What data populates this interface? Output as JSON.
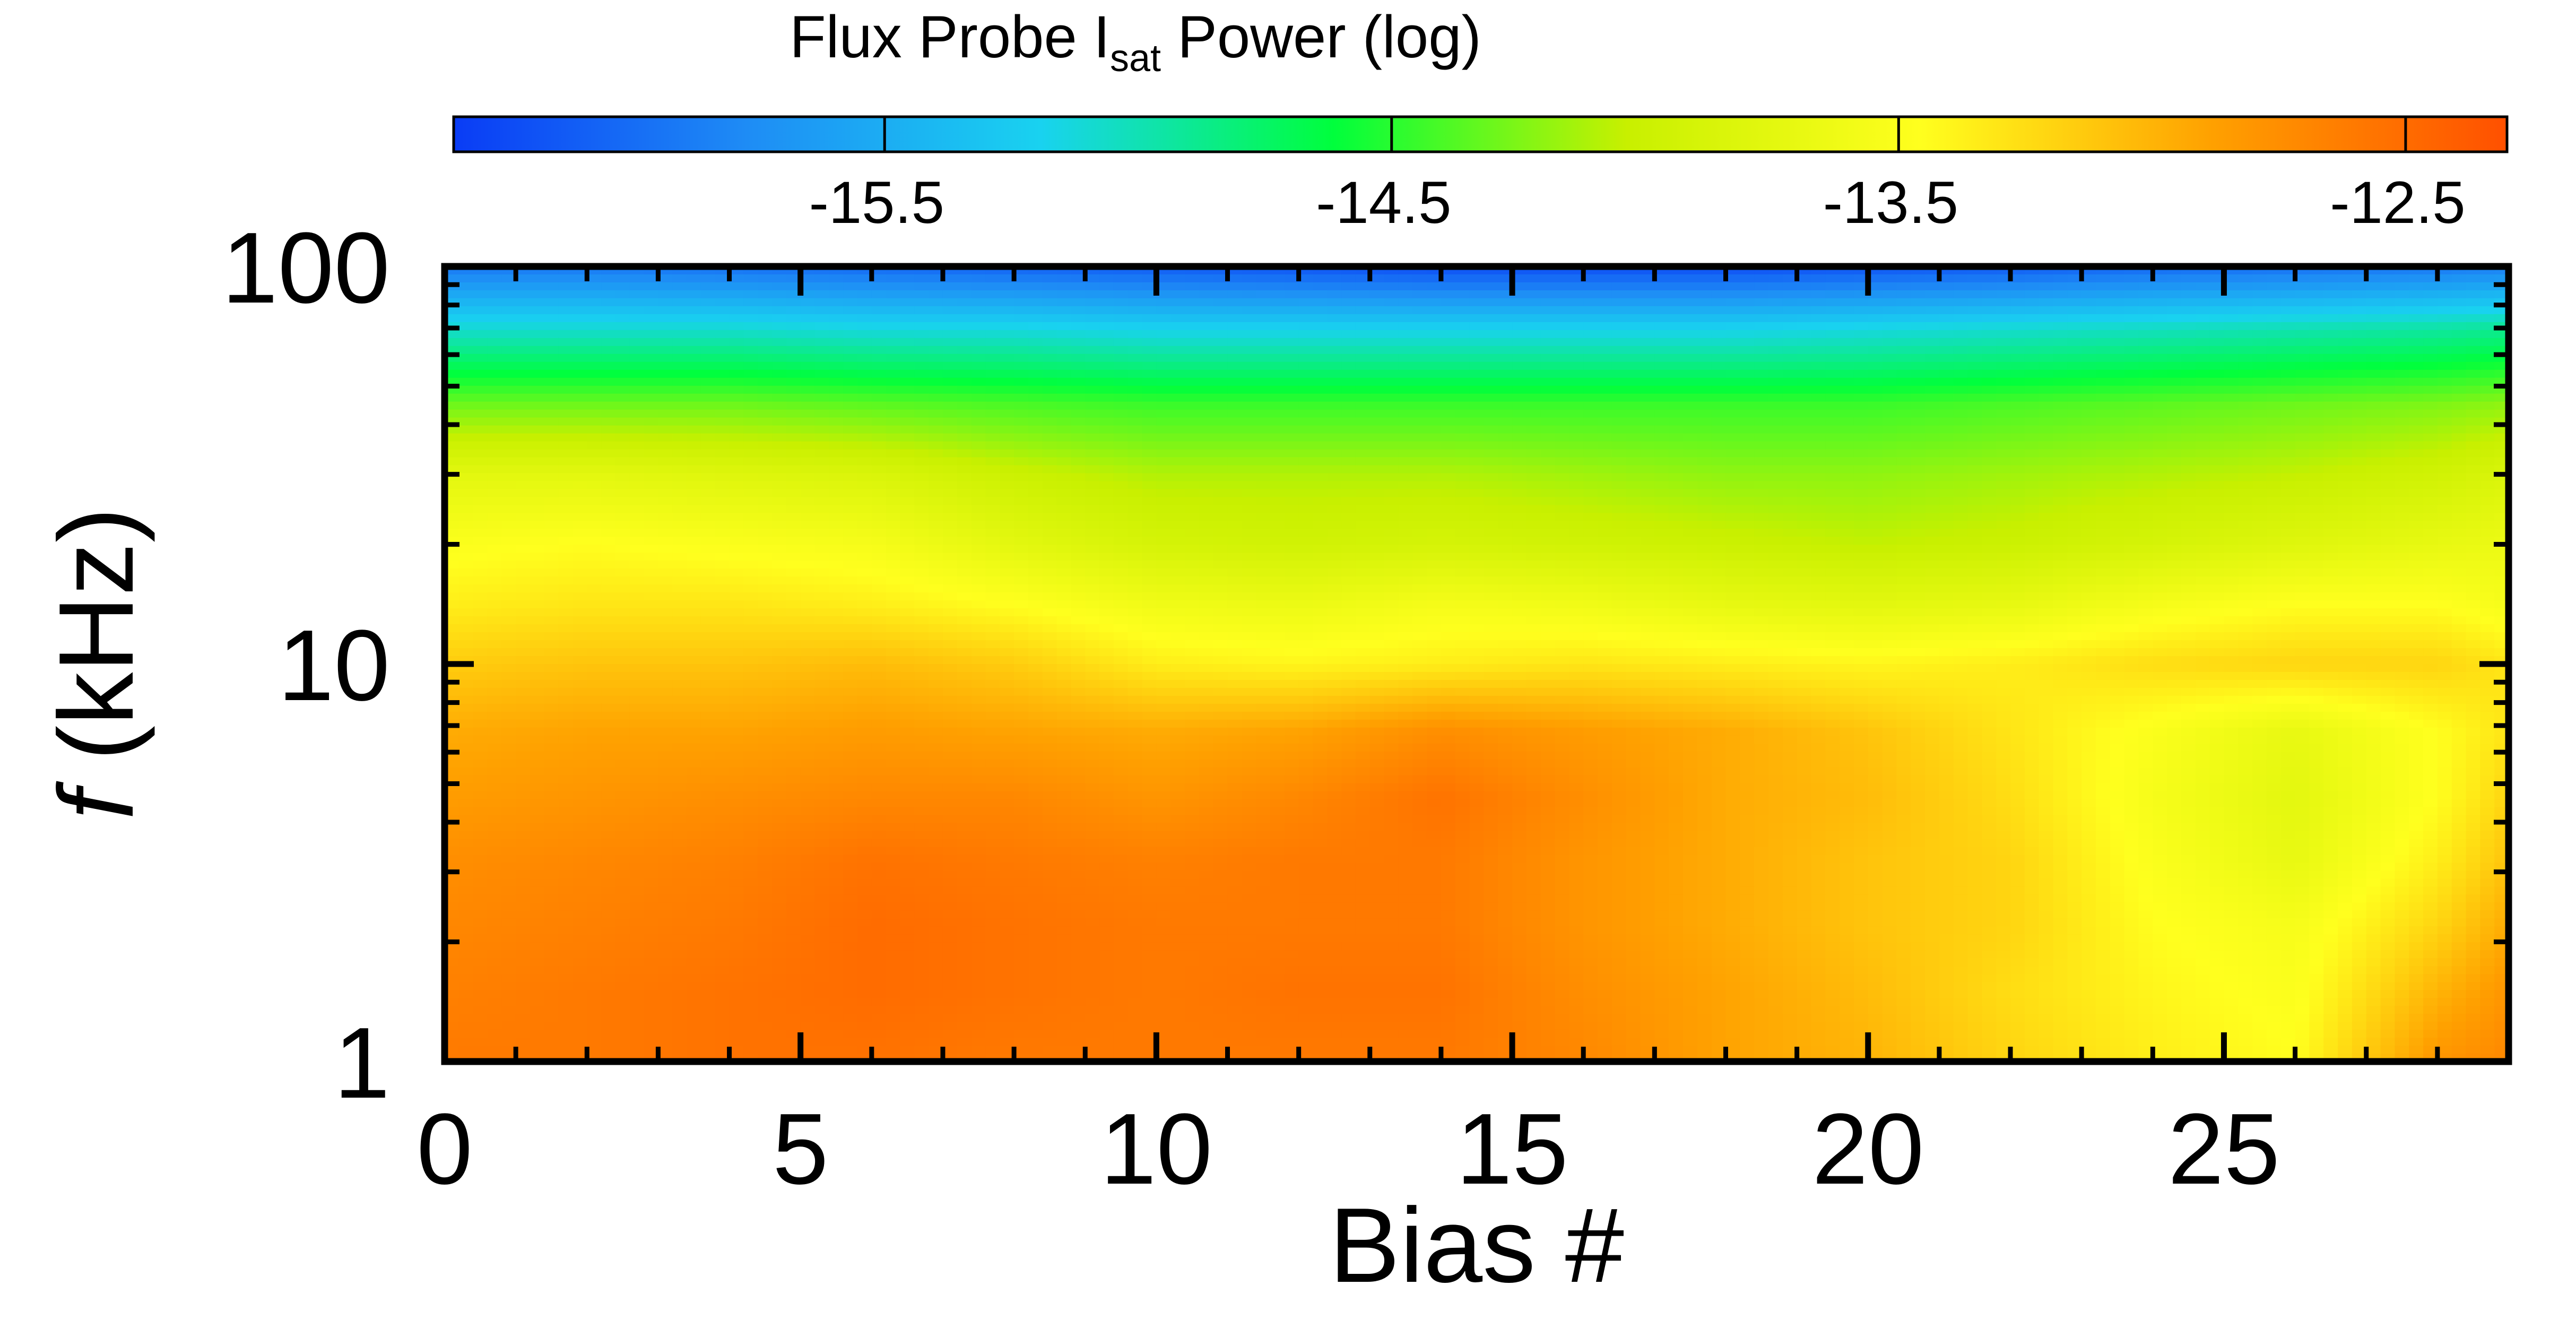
{
  "chart_data": {
    "type": "heatmap",
    "colorbar": {
      "title_main": "Flux Probe I",
      "title_sub": "sat",
      "title_tail": " Power (log)",
      "range": [
        -16.35,
        -12.3
      ],
      "ticks": [
        -15.5,
        -14.5,
        -13.5,
        -12.5
      ],
      "tick_labels": [
        "-15.5",
        "-14.5",
        "-13.5",
        "-12.5"
      ],
      "colormap": [
        "#0a3cf5",
        "#1e8cf5",
        "#19d2f0",
        "#00ff3c",
        "#c8f000",
        "#ffff1e",
        "#ffa000",
        "#ff5000"
      ]
    },
    "x_axis": {
      "label": "Bias #",
      "range": [
        0,
        29
      ],
      "ticks": [
        0,
        5,
        10,
        15,
        20,
        25
      ],
      "tick_labels": [
        "0",
        "5",
        "10",
        "15",
        "20",
        "25"
      ]
    },
    "y_axis": {
      "label_f": "f",
      "label_rest": " (kHz)",
      "scale": "log",
      "range": [
        1,
        100
      ],
      "ticks": [
        1,
        10,
        100
      ],
      "tick_labels": [
        "1",
        "10",
        "100"
      ]
    },
    "x": [
      0,
      2,
      4,
      6,
      8,
      10,
      12,
      14,
      16,
      18,
      20,
      22,
      24,
      26,
      28,
      29
    ],
    "y": [
      1,
      1.5,
      2.2,
      3.2,
      4.6,
      6.8,
      10,
      14,
      20,
      30,
      45,
      70,
      100
    ],
    "z": [
      [
        -12.6,
        -12.6,
        -12.55,
        -12.55,
        -12.6,
        -12.6,
        -12.6,
        -12.6,
        -12.7,
        -12.9,
        -13.0,
        -13.2,
        -13.35,
        -13.45,
        -12.8,
        -12.7
      ],
      [
        -12.65,
        -12.6,
        -12.55,
        -12.5,
        -12.55,
        -12.6,
        -12.55,
        -12.55,
        -12.75,
        -12.9,
        -13.05,
        -13.25,
        -13.4,
        -13.5,
        -13.0,
        -12.8
      ],
      [
        -12.7,
        -12.65,
        -12.6,
        -12.5,
        -12.55,
        -12.6,
        -12.6,
        -12.6,
        -12.8,
        -12.95,
        -13.1,
        -13.2,
        -13.45,
        -13.55,
        -13.2,
        -12.95
      ],
      [
        -12.75,
        -12.7,
        -12.65,
        -12.55,
        -12.6,
        -12.65,
        -12.6,
        -12.6,
        -12.8,
        -12.95,
        -13.1,
        -13.2,
        -13.5,
        -13.7,
        -13.35,
        -13.1
      ],
      [
        -12.85,
        -12.8,
        -12.75,
        -12.7,
        -12.7,
        -12.8,
        -12.7,
        -12.55,
        -12.75,
        -12.95,
        -13.05,
        -13.25,
        -13.55,
        -13.75,
        -13.45,
        -13.2
      ],
      [
        -12.95,
        -12.9,
        -12.9,
        -12.85,
        -12.9,
        -12.95,
        -12.9,
        -12.75,
        -12.85,
        -12.95,
        -13.1,
        -13.3,
        -13.5,
        -13.7,
        -13.45,
        -13.3
      ],
      [
        -13.15,
        -13.1,
        -13.1,
        -13.05,
        -13.15,
        -13.35,
        -13.4,
        -13.35,
        -13.3,
        -13.35,
        -13.4,
        -13.35,
        -13.25,
        -13.2,
        -13.2,
        -13.3
      ],
      [
        -13.35,
        -13.3,
        -13.3,
        -13.35,
        -13.45,
        -13.6,
        -13.65,
        -13.55,
        -13.6,
        -13.7,
        -13.75,
        -13.7,
        -13.55,
        -13.45,
        -13.45,
        -13.55
      ],
      [
        -13.5,
        -13.45,
        -13.5,
        -13.55,
        -13.75,
        -13.9,
        -13.95,
        -13.9,
        -13.95,
        -14.0,
        -14.05,
        -14.0,
        -13.9,
        -13.8,
        -13.7,
        -13.65
      ],
      [
        -13.75,
        -13.75,
        -13.8,
        -13.85,
        -14.0,
        -14.1,
        -14.1,
        -14.1,
        -14.15,
        -14.2,
        -14.2,
        -14.15,
        -14.1,
        -14.05,
        -13.95,
        -13.85
      ],
      [
        -14.3,
        -14.3,
        -14.3,
        -14.35,
        -14.4,
        -14.45,
        -14.45,
        -14.45,
        -14.45,
        -14.45,
        -14.45,
        -14.4,
        -14.35,
        -14.3,
        -14.25,
        -14.2
      ],
      [
        -15.1,
        -15.1,
        -15.1,
        -15.15,
        -15.15,
        -15.2,
        -15.2,
        -15.2,
        -15.2,
        -15.2,
        -15.15,
        -15.1,
        -15.05,
        -15.0,
        -14.95,
        -14.9
      ],
      [
        -15.9,
        -15.9,
        -15.95,
        -16.0,
        -16.05,
        -16.1,
        -16.15,
        -16.2,
        -16.2,
        -16.2,
        -16.15,
        -16.1,
        -16.0,
        -15.95,
        -15.9,
        -15.85
      ]
    ]
  }
}
